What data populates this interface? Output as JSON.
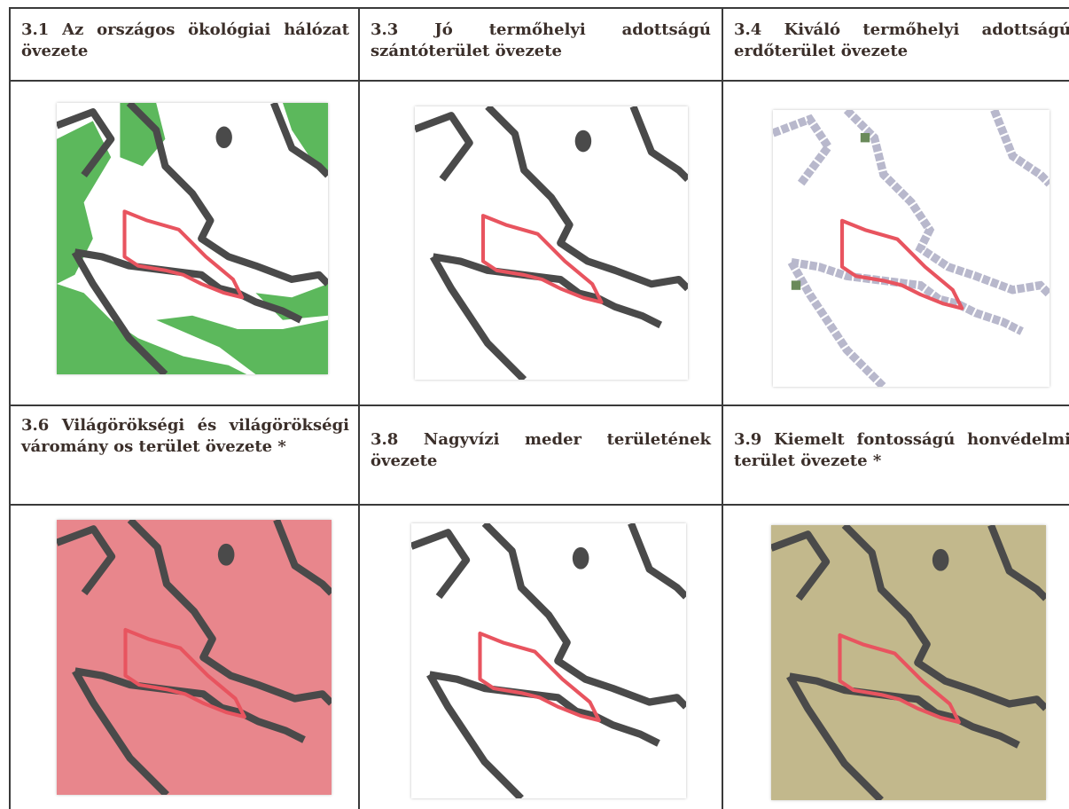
{
  "panels": [
    {
      "caption": "3.1 Az országos ökológiai hálózat övezete",
      "map_style": "green-patches"
    },
    {
      "caption": "3.3 Jó termőhelyi adottságú szántóterület övezete",
      "map_style": "white"
    },
    {
      "caption": "3.4 Kiváló termőhelyi adottságú erdőterület övezete",
      "map_style": "grey-pixel-lines"
    },
    {
      "caption": "3.6 Világörökségi és világörökségi váromány os terület övezete *",
      "map_style": "pink"
    },
    {
      "caption": "3.8 Nagyvízi meder területének övezete",
      "map_style": "white"
    },
    {
      "caption": "3.9 Kiemelt fontosságú honvédelmi terület övezete *",
      "map_style": "khaki"
    }
  ],
  "colors": {
    "outline": "#4a4a4a",
    "highlight": "#e8545f",
    "green": "#5cb85c",
    "pink": "#e8868c",
    "khaki": "#c2b88c",
    "grey_pixels": "#b8b8cc"
  }
}
